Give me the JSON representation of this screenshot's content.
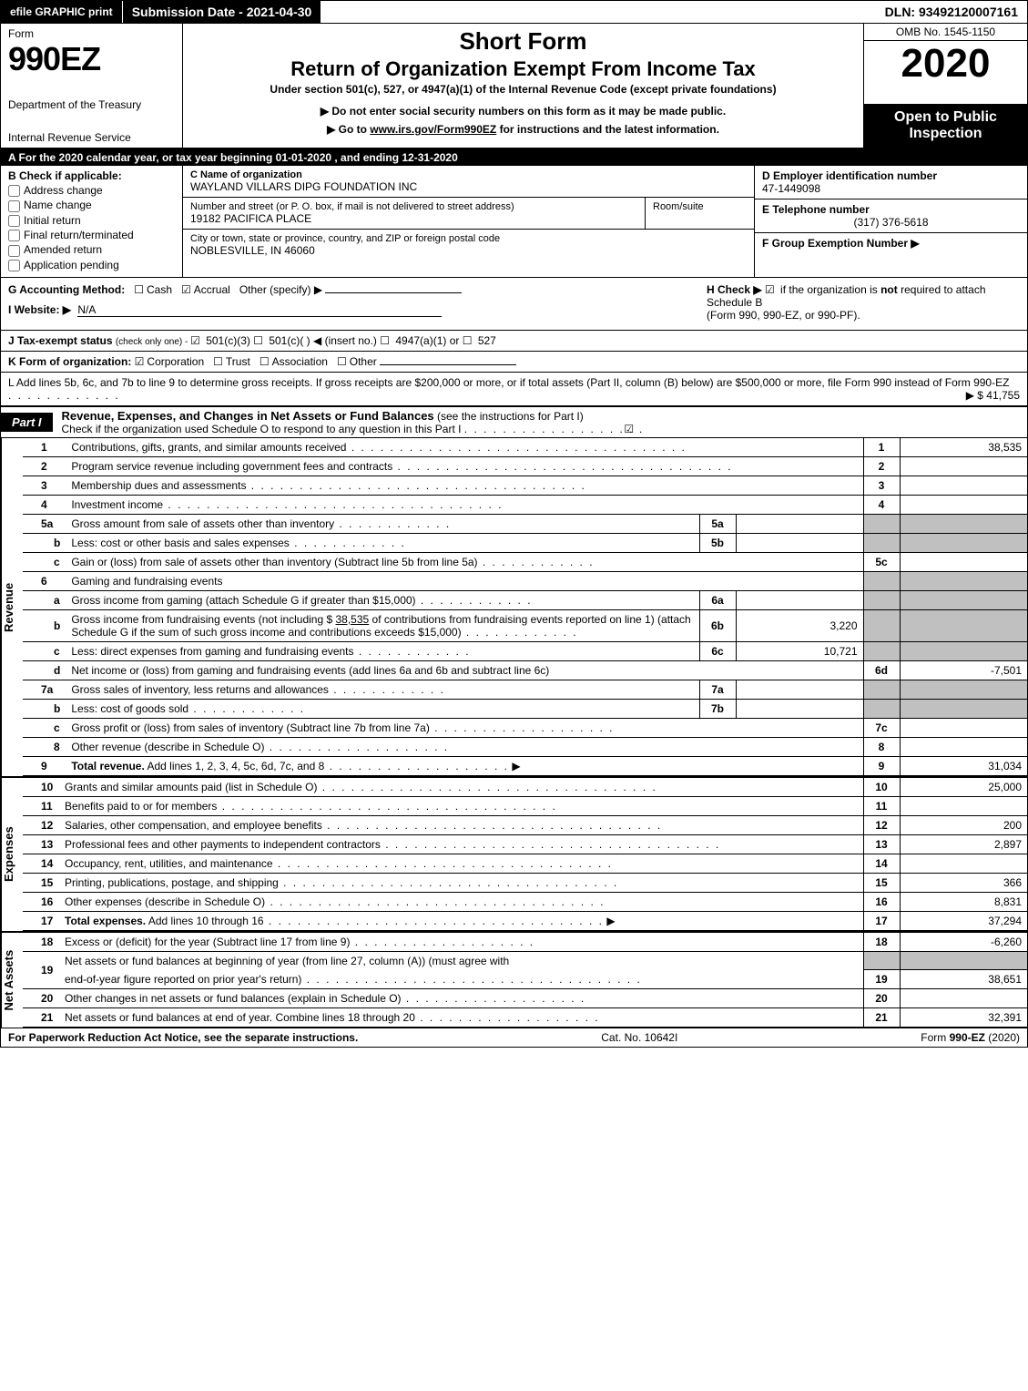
{
  "topbar": {
    "efile": "efile GRAPHIC print",
    "submission": "Submission Date - 2021-04-30",
    "dln": "DLN: 93492120007161"
  },
  "header": {
    "form_word": "Form",
    "form_number": "990EZ",
    "dept1": "Department of the Treasury",
    "dept2": "Internal Revenue Service",
    "short_form": "Short Form",
    "return_title": "Return of Organization Exempt From Income Tax",
    "under": "Under section 501(c), 527, or 4947(a)(1) of the Internal Revenue Code (except private foundations)",
    "warn1": "▶ Do not enter social security numbers on this form as it may be made public.",
    "warn2_prefix": "▶ Go to ",
    "warn2_link": "www.irs.gov/Form990EZ",
    "warn2_suffix": " for instructions and the latest information.",
    "omb": "OMB No. 1545-1150",
    "year": "2020",
    "open": "Open to Public Inspection"
  },
  "row_a": "A  For the 2020 calendar year, or tax year beginning 01-01-2020 , and ending 12-31-2020",
  "section_b": {
    "title": "B  Check if applicable:",
    "items": [
      "Address change",
      "Name change",
      "Initial return",
      "Final return/terminated",
      "Amended return",
      "Application pending"
    ]
  },
  "section_c": {
    "name_lbl": "C Name of organization",
    "name_val": "WAYLAND VILLARS DIPG FOUNDATION INC",
    "street_lbl": "Number and street (or P. O. box, if mail is not delivered to street address)",
    "street_val": "19182 PACIFICA PLACE",
    "room_lbl": "Room/suite",
    "city_lbl": "City or town, state or province, country, and ZIP or foreign postal code",
    "city_val": "NOBLESVILLE, IN  46060"
  },
  "section_d": {
    "ein_lbl": "D Employer identification number",
    "ein_val": "47-1449098",
    "tel_lbl": "E Telephone number",
    "tel_val": "(317) 376-5618",
    "grp_lbl": "F Group Exemption Number  ▶"
  },
  "row_g": {
    "acct_label": "G Accounting Method:",
    "cash": "Cash",
    "accrual": "Accrual",
    "other": "Other (specify) ▶",
    "website_lbl": "I Website: ▶",
    "website_val": "N/A"
  },
  "row_h": {
    "text1": "H  Check ▶ ",
    "text2": " if the organization is ",
    "not": "not",
    "text3": " required to attach Schedule B",
    "text4": "(Form 990, 990-EZ, or 990-PF)."
  },
  "row_j": {
    "label": "J Tax-exempt status",
    "detail": " (check only one) - ",
    "opt1": " 501(c)(3) ",
    "opt2": " 501(c)(  ) ◀ (insert no.) ",
    "opt3": " 4947(a)(1) or ",
    "opt4": " 527"
  },
  "row_k": {
    "label": "K Form of organization:  ",
    "corp": "Corporation",
    "trust": "Trust",
    "assoc": "Association",
    "other": "Other"
  },
  "row_l": {
    "text": "L Add lines 5b, 6c, and 7b to line 9 to determine gross receipts. If gross receipts are $200,000 or more, or if total assets (Part II, column (B) below) are $500,000 or more, file Form 990 instead of Form 990-EZ",
    "arrow_amt": "▶ $ 41,755"
  },
  "part1": {
    "tag": "Part I",
    "title": "Revenue, Expenses, and Changes in Net Assets or Fund Balances",
    "sub": " (see the instructions for Part I)",
    "check_line": "Check if the organization used Schedule O to respond to any question in this Part I"
  },
  "revenue": {
    "lines": [
      {
        "n": "1",
        "d": "Contributions, gifts, grants, and similar amounts received",
        "ln": "1",
        "amt": "38,535"
      },
      {
        "n": "2",
        "d": "Program service revenue including government fees and contracts",
        "ln": "2",
        "amt": ""
      },
      {
        "n": "3",
        "d": "Membership dues and assessments",
        "ln": "3",
        "amt": ""
      },
      {
        "n": "4",
        "d": "Investment income",
        "ln": "4",
        "amt": ""
      }
    ],
    "line5a": {
      "n": "5a",
      "d": "Gross amount from sale of assets other than inventory",
      "mid": "5a",
      "midval": ""
    },
    "line5b": {
      "n": "b",
      "d": "Less: cost or other basis and sales expenses",
      "mid": "5b",
      "midval": ""
    },
    "line5c": {
      "n": "c",
      "d": "Gain or (loss) from sale of assets other than inventory (Subtract line 5b from line 5a)",
      "ln": "5c",
      "amt": ""
    },
    "line6": {
      "n": "6",
      "d": "Gaming and fundraising events"
    },
    "line6a": {
      "n": "a",
      "d": "Gross income from gaming (attach Schedule G if greater than $15,000)",
      "mid": "6a",
      "midval": ""
    },
    "line6b": {
      "n": "b",
      "d1": "Gross income from fundraising events (not including $ ",
      "d1v": "38,535",
      "d2": " of contributions from fundraising events reported on line 1) (attach Schedule G if the sum of such gross income and contributions exceeds $15,000)",
      "mid": "6b",
      "midval": "3,220"
    },
    "line6c": {
      "n": "c",
      "d": "Less: direct expenses from gaming and fundraising events",
      "mid": "6c",
      "midval": "10,721"
    },
    "line6d": {
      "n": "d",
      "d": "Net income or (loss) from gaming and fundraising events (add lines 6a and 6b and subtract line 6c)",
      "ln": "6d",
      "amt": "-7,501"
    },
    "line7a": {
      "n": "7a",
      "d": "Gross sales of inventory, less returns and allowances",
      "mid": "7a",
      "midval": ""
    },
    "line7b": {
      "n": "b",
      "d": "Less: cost of goods sold",
      "mid": "7b",
      "midval": ""
    },
    "line7c": {
      "n": "c",
      "d": "Gross profit or (loss) from sales of inventory (Subtract line 7b from line 7a)",
      "ln": "7c",
      "amt": ""
    },
    "line8": {
      "n": "8",
      "d": "Other revenue (describe in Schedule O)",
      "ln": "8",
      "amt": ""
    },
    "line9": {
      "n": "9",
      "d": "Total revenue. Add lines 1, 2, 3, 4, 5c, 6d, 7c, and 8",
      "ln": "9",
      "amt": "31,034",
      "bold": true
    }
  },
  "expenses": [
    {
      "n": "10",
      "d": "Grants and similar amounts paid (list in Schedule O)",
      "ln": "10",
      "amt": "25,000"
    },
    {
      "n": "11",
      "d": "Benefits paid to or for members",
      "ln": "11",
      "amt": ""
    },
    {
      "n": "12",
      "d": "Salaries, other compensation, and employee benefits",
      "ln": "12",
      "amt": "200"
    },
    {
      "n": "13",
      "d": "Professional fees and other payments to independent contractors",
      "ln": "13",
      "amt": "2,897"
    },
    {
      "n": "14",
      "d": "Occupancy, rent, utilities, and maintenance",
      "ln": "14",
      "amt": ""
    },
    {
      "n": "15",
      "d": "Printing, publications, postage, and shipping",
      "ln": "15",
      "amt": "366"
    },
    {
      "n": "16",
      "d": "Other expenses (describe in Schedule O)",
      "ln": "16",
      "amt": "8,831"
    },
    {
      "n": "17",
      "d": "Total expenses. Add lines 10 through 16",
      "ln": "17",
      "amt": "37,294",
      "bold": true
    }
  ],
  "netassets": [
    {
      "n": "18",
      "d": "Excess or (deficit) for the year (Subtract line 17 from line 9)",
      "ln": "18",
      "amt": "-6,260"
    }
  ],
  "netassets19": {
    "n": "19",
    "d1": "Net assets or fund balances at beginning of year (from line 27, column (A)) (must agree with",
    "d2": "end-of-year figure reported on prior year's return)",
    "ln": "19",
    "amt": "38,651"
  },
  "netassets2": [
    {
      "n": "20",
      "d": "Other changes in net assets or fund balances (explain in Schedule O)",
      "ln": "20",
      "amt": ""
    },
    {
      "n": "21",
      "d": "Net assets or fund balances at end of year. Combine lines 18 through 20",
      "ln": "21",
      "amt": "32,391"
    }
  ],
  "side_labels": {
    "revenue": "Revenue",
    "expenses": "Expenses",
    "netassets": "Net Assets"
  },
  "footer": {
    "left": "For Paperwork Reduction Act Notice, see the separate instructions.",
    "mid": "Cat. No. 10642I",
    "right_pre": "Form ",
    "right_form": "990-EZ",
    "right_post": " (2020)"
  },
  "colors": {
    "black": "#000000",
    "white": "#ffffff",
    "shade": "#c0c0c0"
  }
}
